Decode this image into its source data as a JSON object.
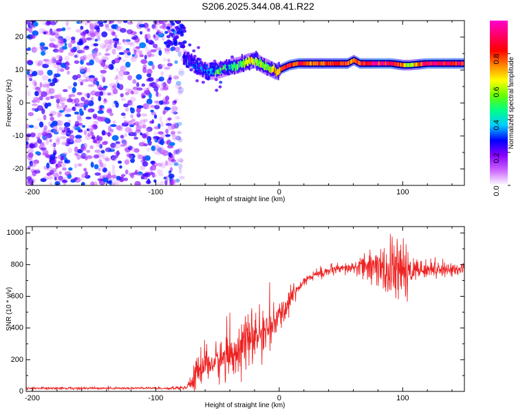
{
  "title": "S206.2025.344.08.41.R22",
  "chart_data": [
    {
      "type": "heatmap",
      "subtype": "spectrogram",
      "xlabel": "Height of straight line (km)",
      "ylabel": "Frequency (Hz)",
      "xlim": [
        -205,
        150
      ],
      "ylim": [
        -25,
        25
      ],
      "xticks": [
        -200,
        -100,
        0,
        100
      ],
      "yticks": [
        -20,
        -10,
        0,
        10,
        20
      ],
      "colorbar": {
        "label": "Normalized spectral amplitude",
        "range": [
          0.0,
          1.0
        ],
        "ticks": [
          0.0,
          0.2,
          0.4,
          0.6,
          0.8
        ],
        "stops": [
          "#ffffff",
          "#cc66ff",
          "#8800ff",
          "#0000ff",
          "#00ccff",
          "#00ff88",
          "#66ff00",
          "#ffff00",
          "#ff8800",
          "#ff0000",
          "#ff0066",
          "#ff00cc"
        ]
      },
      "noise_region": {
        "x": [
          -205,
          -78
        ],
        "y": [
          -25,
          25
        ],
        "level": 0.15
      },
      "signal_ridge": {
        "x": [
          -78,
          -70,
          -62,
          -55,
          -48,
          -40,
          -33,
          -26,
          -20,
          -14,
          -8,
          -3,
          2,
          8,
          15,
          25,
          40,
          55,
          60,
          65,
          80,
          90,
          100,
          105,
          120,
          150
        ],
        "freq": [
          14,
          12,
          10,
          9.5,
          10,
          11,
          11.5,
          12.5,
          13,
          11.5,
          10.5,
          9.5,
          10.5,
          11.5,
          12,
          12,
          12,
          12,
          13,
          12,
          12,
          12,
          11.5,
          11.5,
          12,
          12
        ],
        "amplitude": [
          0.2,
          0.3,
          0.35,
          0.4,
          0.45,
          0.45,
          0.5,
          0.6,
          0.65,
          0.55,
          0.55,
          0.7,
          0.8,
          0.85,
          0.85,
          0.75,
          0.8,
          0.8,
          0.7,
          0.85,
          0.9,
          0.9,
          0.7,
          0.6,
          0.9,
          0.85
        ]
      }
    },
    {
      "type": "line",
      "xlabel": "Height of straight line (km)",
      "ylabel": "SNR (10 * v/v)",
      "xlim": [
        -205,
        150
      ],
      "ylim": [
        0,
        1040
      ],
      "xticks": [
        -200,
        -100,
        0,
        100
      ],
      "yticks": [
        0,
        200,
        400,
        600,
        800,
        1000
      ],
      "series": [
        {
          "name": "SNR",
          "color": "#ee2222",
          "x": [
            -205,
            -180,
            -150,
            -120,
            -100,
            -85,
            -75,
            -70,
            -65,
            -60,
            -55,
            -50,
            -45,
            -40,
            -35,
            -30,
            -25,
            -20,
            -15,
            -10,
            -5,
            0,
            5,
            10,
            15,
            20,
            25,
            30,
            40,
            50,
            60,
            70,
            75,
            80,
            85,
            90,
            95,
            100,
            103,
            105,
            110,
            120,
            130,
            140,
            150
          ],
          "mean": [
            20,
            20,
            20,
            20,
            20,
            20,
            25,
            60,
            150,
            180,
            170,
            190,
            210,
            220,
            270,
            300,
            320,
            340,
            360,
            390,
            420,
            460,
            530,
            600,
            650,
            700,
            720,
            740,
            760,
            770,
            780,
            790,
            790,
            780,
            760,
            750,
            760,
            760,
            700,
            760,
            770,
            770,
            770,
            770,
            770
          ],
          "spread": [
            8,
            8,
            8,
            8,
            8,
            8,
            10,
            60,
            120,
            100,
            90,
            110,
            120,
            130,
            150,
            150,
            150,
            140,
            120,
            110,
            100,
            90,
            80,
            60,
            40,
            30,
            30,
            30,
            30,
            30,
            35,
            80,
            100,
            130,
            140,
            160,
            170,
            150,
            200,
            120,
            60,
            45,
            40,
            40,
            40
          ]
        }
      ]
    }
  ]
}
